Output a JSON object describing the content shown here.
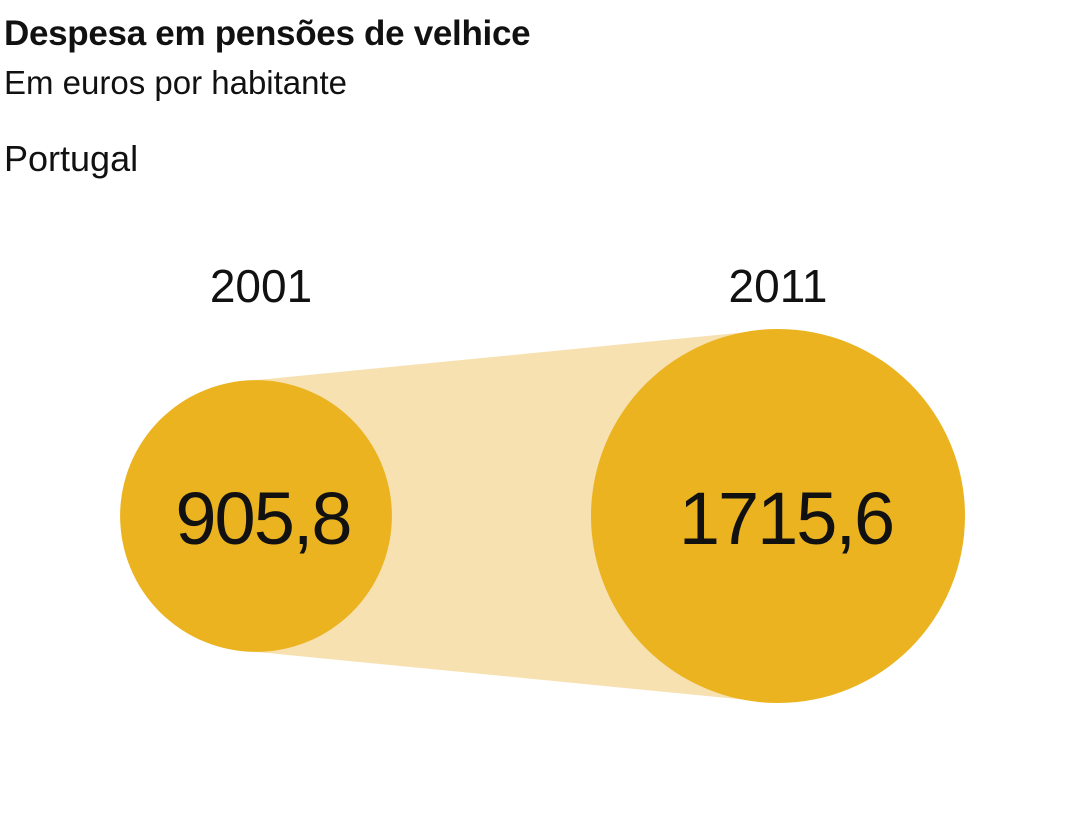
{
  "header": {
    "title": "Despesa em pensões de velhice",
    "subtitle": "Em euros por habitante",
    "region": "Portugal"
  },
  "colors": {
    "circle": "#ebb320",
    "connector": "#f7e1b0",
    "text": "#111111"
  },
  "chart_data": {
    "type": "proportional-circles",
    "categories": [
      "2001",
      "2011"
    ],
    "values": [
      905.8,
      1715.6
    ],
    "value_labels": [
      "905,8",
      "1715,6"
    ]
  }
}
